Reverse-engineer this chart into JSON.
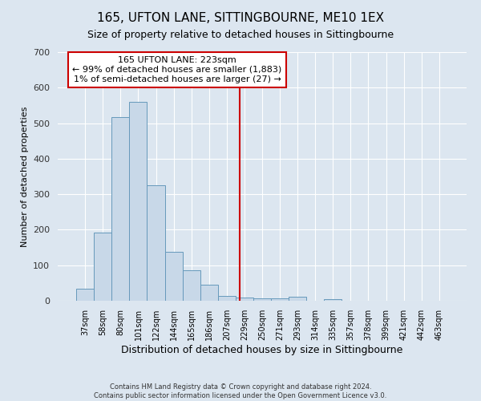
{
  "title": "165, UFTON LANE, SITTINGBOURNE, ME10 1EX",
  "subtitle": "Size of property relative to detached houses in Sittingbourne",
  "xlabel": "Distribution of detached houses by size in Sittingbourne",
  "ylabel": "Number of detached properties",
  "footer_line1": "Contains HM Land Registry data © Crown copyright and database right 2024.",
  "footer_line2": "Contains public sector information licensed under the Open Government Licence v3.0.",
  "categories": [
    "37sqm",
    "58sqm",
    "80sqm",
    "101sqm",
    "122sqm",
    "144sqm",
    "165sqm",
    "186sqm",
    "207sqm",
    "229sqm",
    "250sqm",
    "271sqm",
    "293sqm",
    "314sqm",
    "335sqm",
    "357sqm",
    "378sqm",
    "399sqm",
    "421sqm",
    "442sqm",
    "463sqm"
  ],
  "values": [
    35,
    191,
    516,
    560,
    325,
    138,
    85,
    46,
    13,
    8,
    6,
    6,
    11,
    0,
    5,
    0,
    0,
    0,
    0,
    0,
    0
  ],
  "bar_color": "#c8d8e8",
  "bar_edge_color": "#6699bb",
  "annotation_text_line1": "165 UFTON LANE: 223sqm",
  "annotation_text_line2": "← 99% of detached houses are smaller (1,883)",
  "annotation_text_line3": "1% of semi-detached houses are larger (27) →",
  "vline_color": "#cc0000",
  "annotation_box_color": "#ffffff",
  "annotation_box_edge_color": "#cc0000",
  "ylim": [
    0,
    700
  ],
  "title_fontsize": 11,
  "subtitle_fontsize": 9,
  "xlabel_fontsize": 9,
  "ylabel_fontsize": 8,
  "tick_fontsize": 7,
  "annotation_fontsize": 8,
  "footer_fontsize": 6,
  "background_color": "#dce6f0",
  "plot_background_color": "#dce6f0"
}
